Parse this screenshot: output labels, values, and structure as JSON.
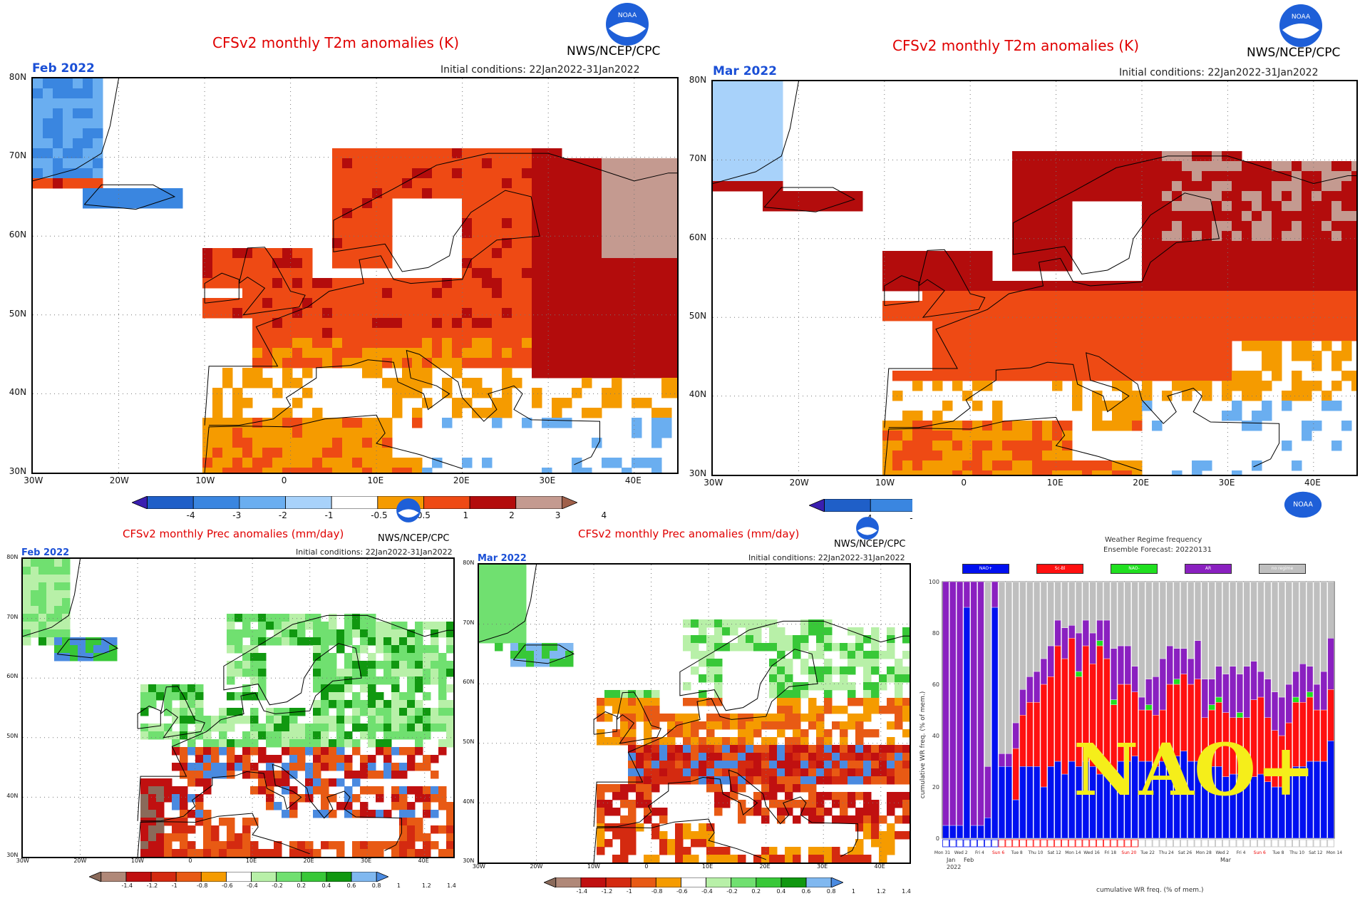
{
  "colors": {
    "title": "#e00000",
    "month": "#1a4fd6",
    "noaa_blue": "#1e5fd8",
    "t_scale": [
      "#3a1fb0",
      "#1f5fc8",
      "#3a86e0",
      "#6aaef0",
      "#a8d2fa",
      "#ffffff",
      "#f59b00",
      "#ee4a14",
      "#b30c0c",
      "#c49a90",
      "#a0604a"
    ],
    "p_scale": [
      "#8a6a5a",
      "#b08878",
      "#c01010",
      "#d42a10",
      "#e85a14",
      "#f59b00",
      "#ffffff",
      "#b8f0a8",
      "#70e070",
      "#38c838",
      "#109810",
      "#80b8f0",
      "#4a8ae0"
    ]
  },
  "panels": {
    "t_feb": {
      "title": "CFSv2 monthly T2m anomalies (K)",
      "month": "Feb 2022",
      "init": "Initial conditions: 22Jan2022-31Jan2022",
      "org": "NWS/NCEP/CPC"
    },
    "t_mar": {
      "title": "CFSv2 monthly T2m anomalies (K)",
      "month": "Mar 2022",
      "init": "Initial conditions: 22Jan2022-31Jan2022",
      "org": "NWS/NCEP/CPC"
    },
    "p_feb": {
      "title": "CFSv2 monthly Prec anomalies (mm/day)",
      "month": "Feb 2022",
      "init": "Initial conditions: 22Jan2022-31Jan2022",
      "org": "NWS/NCEP/CPC"
    },
    "p_mar": {
      "title": "CFSv2 monthly Prec anomalies (mm/day)",
      "month": "Mar 2022",
      "init": "Initial conditions: 22Jan2022-31Jan2022",
      "org": "NWS/NCEP/CPC"
    }
  },
  "axes": {
    "lat_labels": [
      "80N",
      "70N",
      "60N",
      "50N",
      "40N",
      "30N"
    ],
    "lon_labels": [
      "30W",
      "20W",
      "10W",
      "0",
      "10E",
      "20E",
      "30E",
      "40E"
    ]
  },
  "colorbars": {
    "temp": [
      "-4",
      "-3",
      "-2",
      "-1",
      "-0.5",
      "0.5",
      "1",
      "2",
      "3",
      "4"
    ],
    "prec": [
      "-1.4",
      "-1.2",
      "-1",
      "-0.8",
      "-0.6",
      "-0.4",
      "-0.2",
      "0.2",
      "0.4",
      "0.6",
      "0.8",
      "1",
      "1.2",
      "1.4"
    ]
  },
  "noaa_label": "NOAA",
  "regime": {
    "title": "Weather Regime frequency",
    "subtitle": "Ensemble Forecast: 20220131",
    "legend": [
      "NAO+",
      "Sc-Bl",
      "NAO-",
      "AR",
      "no regime"
    ],
    "legend_colors": [
      "#0010f0",
      "#ff1010",
      "#20e020",
      "#8a20c0",
      "#bfbfbf"
    ],
    "y_ticks": [
      "100",
      "80",
      "60",
      "40",
      "20",
      "0"
    ],
    "ylabel": "cumulative WR freq. (% of mem.)",
    "xlabel": "cumulative WR freq. (% of mem.)",
    "x_ticks": [
      "Mon 31",
      "Wed 2",
      "Fri 4",
      "Sun 6",
      "Tue 8",
      "Thu 10",
      "Sat 12",
      "Mon 14",
      "Wed 16",
      "Fri 18",
      "Sun 20",
      "Tue 22",
      "Thu 24",
      "Sat 26",
      "Mon 28",
      "Wed 2",
      "Fri 4",
      "Sun 6",
      "Tue 8",
      "Thu 10",
      "Sat 12",
      "Mon 14"
    ],
    "month_labels": [
      "Jan",
      "Feb",
      "Mar"
    ],
    "year_label": "2022",
    "overlay": "NAO+",
    "nao_plus": [
      5,
      5,
      5,
      90,
      5,
      5,
      8,
      90,
      28,
      28,
      15,
      28,
      28,
      28,
      20,
      28,
      30,
      25,
      30,
      28,
      30,
      28,
      25,
      25,
      22,
      30,
      30,
      32,
      30,
      30,
      28,
      30,
      35,
      32,
      34,
      30,
      30,
      25,
      28,
      28,
      24,
      25,
      25,
      22,
      24,
      25,
      22,
      20,
      20,
      25,
      28,
      28,
      30,
      30,
      30,
      38
    ],
    "sc_bl": [
      0,
      0,
      0,
      0,
      0,
      0,
      0,
      0,
      0,
      0,
      20,
      20,
      25,
      25,
      40,
      35,
      45,
      45,
      48,
      35,
      45,
      40,
      50,
      45,
      30,
      30,
      30,
      25,
      20,
      20,
      20,
      20,
      25,
      28,
      30,
      30,
      32,
      22,
      22,
      25,
      25,
      22,
      22,
      25,
      30,
      30,
      25,
      22,
      20,
      20,
      25,
      25,
      25,
      20,
      20,
      20
    ],
    "nao_minus": [
      0,
      0,
      0,
      0,
      0,
      0,
      0,
      0,
      0,
      0,
      0,
      0,
      0,
      0,
      0,
      0,
      0,
      0,
      0,
      2,
      0,
      0,
      2,
      0,
      2,
      0,
      0,
      0,
      0,
      2,
      0,
      0,
      0,
      2,
      0,
      0,
      0,
      0,
      2,
      2,
      0,
      0,
      2,
      0,
      0,
      0,
      0,
      0,
      0,
      0,
      2,
      0,
      2,
      0,
      0,
      0
    ],
    "ar": [
      95,
      95,
      95,
      10,
      95,
      95,
      20,
      10,
      5,
      5,
      10,
      10,
      10,
      12,
      10,
      12,
      10,
      12,
      5,
      15,
      10,
      12,
      8,
      15,
      20,
      15,
      15,
      10,
      5,
      10,
      15,
      20,
      15,
      12,
      10,
      10,
      15,
      15,
      10,
      12,
      15,
      20,
      15,
      20,
      15,
      10,
      15,
      15,
      15,
      15,
      10,
      15,
      10,
      10,
      15,
      20
    ]
  }
}
